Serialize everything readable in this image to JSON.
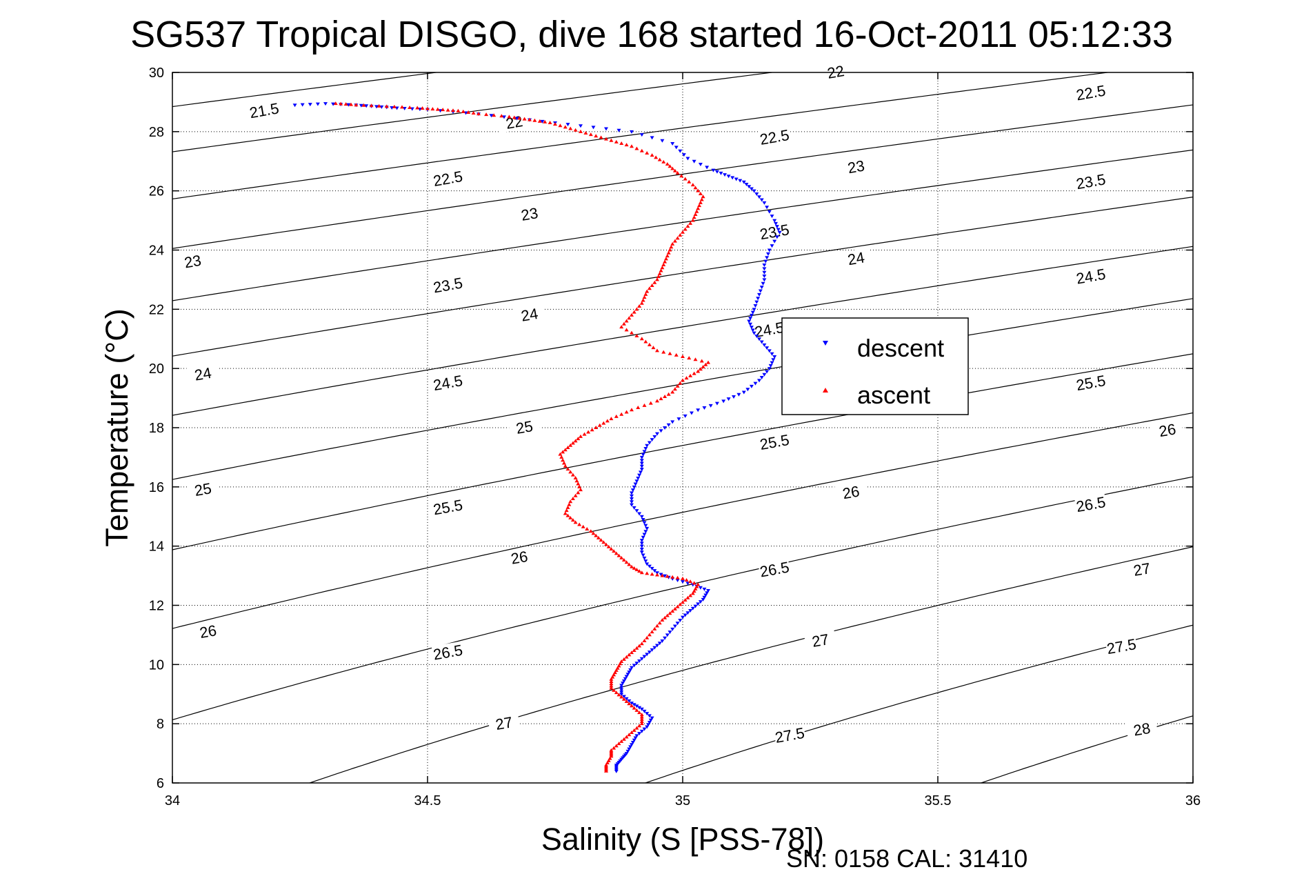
{
  "chart_data": {
    "type": "scatter",
    "title": "SG537 Tropical DISGO, dive 168 started 16-Oct-2011 05:12:33",
    "xlabel": "Salinity (S [PSS-78])",
    "ylabel": "Temperature (°C)",
    "xlim": [
      34,
      36
    ],
    "ylim": [
      6,
      30
    ],
    "xticks": [
      "34",
      "34.5",
      "35",
      "35.5",
      "36"
    ],
    "yticks": [
      "6",
      "8",
      "10",
      "12",
      "14",
      "16",
      "18",
      "20",
      "22",
      "24",
      "26",
      "28",
      "30"
    ],
    "grid": true,
    "legend_position": "right",
    "footer": "SN: 0158  CAL: 31410",
    "density_contours": {
      "color": "#000000",
      "labels": [
        {
          "text": "21.5",
          "s": 34.18,
          "t": 28.7
        },
        {
          "text": "22",
          "s": 34.67,
          "t": 28.3
        },
        {
          "text": "22",
          "s": 35.3,
          "t": 30.0
        },
        {
          "text": "22.5",
          "s": 34.54,
          "t": 26.4
        },
        {
          "text": "22.5",
          "s": 35.18,
          "t": 27.8
        },
        {
          "text": "22.5",
          "s": 35.8,
          "t": 29.3
        },
        {
          "text": "23",
          "s": 34.04,
          "t": 23.6
        },
        {
          "text": "23",
          "s": 34.7,
          "t": 25.2
        },
        {
          "text": "23",
          "s": 35.34,
          "t": 26.8
        },
        {
          "text": "23.5",
          "s": 34.54,
          "t": 22.8
        },
        {
          "text": "23.5",
          "s": 35.18,
          "t": 24.6
        },
        {
          "text": "23.5",
          "s": 35.8,
          "t": 26.3
        },
        {
          "text": "24",
          "s": 34.06,
          "t": 19.8
        },
        {
          "text": "24",
          "s": 34.7,
          "t": 21.8
        },
        {
          "text": "24",
          "s": 35.34,
          "t": 23.7
        },
        {
          "text": "24.5",
          "s": 35.17,
          "t": 21.3
        },
        {
          "text": "24.5",
          "s": 34.54,
          "t": 19.5
        },
        {
          "text": "24.5",
          "s": 35.8,
          "t": 23.1
        },
        {
          "text": "25",
          "s": 34.06,
          "t": 15.9
        },
        {
          "text": "25",
          "s": 34.69,
          "t": 18.0
        },
        {
          "text": "25.5",
          "s": 34.54,
          "t": 15.3
        },
        {
          "text": "25.5",
          "s": 35.18,
          "t": 17.5
        },
        {
          "text": "25.5",
          "s": 35.8,
          "t": 19.5
        },
        {
          "text": "26",
          "s": 34.07,
          "t": 11.1
        },
        {
          "text": "26",
          "s": 34.68,
          "t": 13.6
        },
        {
          "text": "26",
          "s": 35.33,
          "t": 15.8
        },
        {
          "text": "26",
          "s": 35.95,
          "t": 17.9
        },
        {
          "text": "26.5",
          "s": 34.54,
          "t": 10.4
        },
        {
          "text": "26.5",
          "s": 35.18,
          "t": 13.2
        },
        {
          "text": "26.5",
          "s": 35.8,
          "t": 15.4
        },
        {
          "text": "27",
          "s": 34.65,
          "t": 8.0
        },
        {
          "text": "27",
          "s": 35.27,
          "t": 10.8
        },
        {
          "text": "27",
          "s": 35.9,
          "t": 13.2
        },
        {
          "text": "27.5",
          "s": 35.21,
          "t": 7.6
        },
        {
          "text": "27.5",
          "s": 35.86,
          "t": 10.6
        },
        {
          "text": "28",
          "s": 35.9,
          "t": 7.8
        }
      ]
    },
    "series": [
      {
        "name": "descent",
        "color": "#0000ff",
        "marker": "triangle-down",
        "points": [
          [
            34.24,
            28.9
          ],
          [
            34.3,
            28.95
          ],
          [
            34.36,
            28.9
          ],
          [
            34.4,
            28.85
          ],
          [
            34.44,
            28.8
          ],
          [
            34.5,
            28.75
          ],
          [
            34.6,
            28.6
          ],
          [
            34.7,
            28.4
          ],
          [
            34.8,
            28.2
          ],
          [
            34.9,
            28.0
          ],
          [
            34.98,
            27.6
          ],
          [
            35.01,
            27.1
          ],
          [
            35.06,
            26.7
          ],
          [
            35.09,
            26.5
          ],
          [
            35.12,
            26.3
          ],
          [
            35.14,
            26.0
          ],
          [
            35.16,
            25.6
          ],
          [
            35.18,
            25.0
          ],
          [
            35.19,
            24.6
          ],
          [
            35.17,
            24.0
          ],
          [
            35.16,
            23.5
          ],
          [
            35.16,
            23.0
          ],
          [
            35.15,
            22.5
          ],
          [
            35.14,
            22.0
          ],
          [
            35.13,
            21.6
          ],
          [
            35.14,
            21.2
          ],
          [
            35.16,
            20.8
          ],
          [
            35.18,
            20.4
          ],
          [
            35.17,
            20.0
          ],
          [
            35.15,
            19.6
          ],
          [
            35.12,
            19.2
          ],
          [
            35.08,
            18.9
          ],
          [
            35.03,
            18.6
          ],
          [
            34.98,
            18.2
          ],
          [
            34.95,
            17.8
          ],
          [
            34.93,
            17.4
          ],
          [
            34.92,
            17.0
          ],
          [
            34.92,
            16.6
          ],
          [
            34.91,
            16.2
          ],
          [
            34.9,
            15.8
          ],
          [
            34.9,
            15.4
          ],
          [
            34.92,
            15.0
          ],
          [
            34.93,
            14.6
          ],
          [
            34.92,
            14.2
          ],
          [
            34.92,
            13.8
          ],
          [
            34.93,
            13.4
          ],
          [
            34.95,
            13.1
          ],
          [
            34.98,
            12.9
          ],
          [
            35.02,
            12.7
          ],
          [
            35.05,
            12.5
          ],
          [
            35.04,
            12.2
          ],
          [
            35.02,
            11.9
          ],
          [
            35.0,
            11.6
          ],
          [
            34.98,
            11.2
          ],
          [
            34.96,
            10.8
          ],
          [
            34.94,
            10.5
          ],
          [
            34.92,
            10.2
          ],
          [
            34.9,
            9.9
          ],
          [
            34.89,
            9.6
          ],
          [
            34.88,
            9.3
          ],
          [
            34.88,
            9.0
          ],
          [
            34.9,
            8.7
          ],
          [
            34.92,
            8.5
          ],
          [
            34.94,
            8.2
          ],
          [
            34.93,
            7.9
          ],
          [
            34.91,
            7.6
          ],
          [
            34.9,
            7.3
          ],
          [
            34.89,
            7.0
          ],
          [
            34.88,
            6.8
          ],
          [
            34.87,
            6.6
          ],
          [
            34.87,
            6.4
          ]
        ]
      },
      {
        "name": "ascent",
        "color": "#ff0000",
        "marker": "triangle-up",
        "points": [
          [
            34.32,
            28.95
          ],
          [
            34.36,
            28.9
          ],
          [
            34.42,
            28.85
          ],
          [
            34.48,
            28.8
          ],
          [
            34.52,
            28.75
          ],
          [
            34.56,
            28.7
          ],
          [
            34.6,
            28.6
          ],
          [
            34.66,
            28.5
          ],
          [
            34.7,
            28.4
          ],
          [
            34.74,
            28.3
          ],
          [
            34.78,
            28.1
          ],
          [
            34.82,
            27.9
          ],
          [
            34.86,
            27.7
          ],
          [
            34.9,
            27.5
          ],
          [
            34.94,
            27.2
          ],
          [
            34.97,
            26.9
          ],
          [
            34.99,
            26.6
          ],
          [
            35.02,
            26.2
          ],
          [
            35.04,
            25.8
          ],
          [
            35.03,
            25.4
          ],
          [
            35.02,
            25.0
          ],
          [
            35.0,
            24.6
          ],
          [
            34.98,
            24.2
          ],
          [
            34.97,
            23.8
          ],
          [
            34.96,
            23.4
          ],
          [
            34.95,
            23.0
          ],
          [
            34.93,
            22.6
          ],
          [
            34.92,
            22.2
          ],
          [
            34.9,
            21.8
          ],
          [
            34.88,
            21.4
          ],
          [
            34.92,
            21.0
          ],
          [
            34.95,
            20.6
          ],
          [
            35.0,
            20.4
          ],
          [
            35.05,
            20.2
          ],
          [
            35.03,
            19.9
          ],
          [
            35.0,
            19.6
          ],
          [
            34.98,
            19.2
          ],
          [
            34.95,
            18.9
          ],
          [
            34.9,
            18.6
          ],
          [
            34.86,
            18.3
          ],
          [
            34.83,
            18.0
          ],
          [
            34.8,
            17.7
          ],
          [
            34.78,
            17.4
          ],
          [
            34.76,
            17.1
          ],
          [
            34.77,
            16.7
          ],
          [
            34.79,
            16.3
          ],
          [
            34.8,
            15.9
          ],
          [
            34.78,
            15.5
          ],
          [
            34.77,
            15.1
          ],
          [
            34.79,
            14.8
          ],
          [
            34.82,
            14.5
          ],
          [
            34.84,
            14.2
          ],
          [
            34.86,
            13.9
          ],
          [
            34.88,
            13.6
          ],
          [
            34.9,
            13.3
          ],
          [
            34.92,
            13.1
          ],
          [
            34.96,
            13.0
          ],
          [
            35.0,
            12.9
          ],
          [
            35.03,
            12.7
          ],
          [
            35.02,
            12.4
          ],
          [
            35.0,
            12.1
          ],
          [
            34.98,
            11.8
          ],
          [
            34.96,
            11.5
          ],
          [
            34.94,
            11.1
          ],
          [
            34.92,
            10.7
          ],
          [
            34.9,
            10.4
          ],
          [
            34.88,
            10.1
          ],
          [
            34.87,
            9.8
          ],
          [
            34.86,
            9.5
          ],
          [
            34.86,
            9.2
          ],
          [
            34.88,
            8.9
          ],
          [
            34.9,
            8.6
          ],
          [
            34.92,
            8.3
          ],
          [
            34.92,
            8.0
          ],
          [
            34.9,
            7.7
          ],
          [
            34.88,
            7.4
          ],
          [
            34.86,
            7.1
          ],
          [
            34.86,
            6.9
          ],
          [
            34.85,
            6.6
          ],
          [
            34.85,
            6.4
          ]
        ]
      }
    ]
  }
}
